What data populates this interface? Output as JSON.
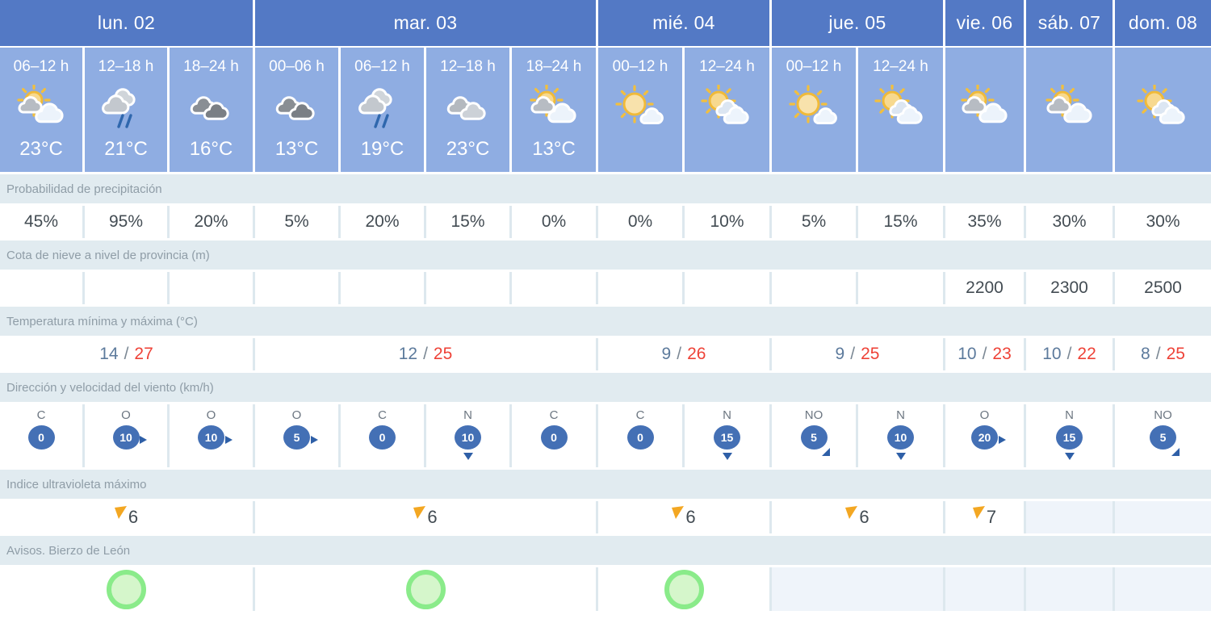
{
  "days": [
    {
      "label": "lun. 02",
      "span": 3
    },
    {
      "label": "mar. 03",
      "span": 4
    },
    {
      "label": "mié. 04",
      "span": 2
    },
    {
      "label": "jue. 05",
      "span": 2
    },
    {
      "label": "vie. 06",
      "span": 1
    },
    {
      "label": "sáb. 07",
      "span": 1
    },
    {
      "label": "dom. 08",
      "span": 1
    }
  ],
  "slots": [
    {
      "time": "06–12 h",
      "icon": "sun-behind-clouds-icon",
      "temp": "23°C"
    },
    {
      "time": "12–18 h",
      "icon": "rain-clouds-icon",
      "temp": "21°C"
    },
    {
      "time": "18–24 h",
      "icon": "dark-clouds-icon",
      "temp": "16°C"
    },
    {
      "time": "00–06 h",
      "icon": "dark-clouds-icon",
      "temp": "13°C"
    },
    {
      "time": "06–12 h",
      "icon": "rain-clouds-icon",
      "temp": "19°C"
    },
    {
      "time": "12–18 h",
      "icon": "gray-clouds-icon",
      "temp": "23°C"
    },
    {
      "time": "18–24 h",
      "icon": "sun-behind-clouds-icon",
      "temp": "13°C"
    },
    {
      "time": "00–12 h",
      "icon": "sun-and-cloud-icon",
      "temp": ""
    },
    {
      "time": "12–24 h",
      "icon": "sun-and-clouds-icon",
      "temp": ""
    },
    {
      "time": "00–12 h",
      "icon": "sun-and-cloud-icon",
      "temp": ""
    },
    {
      "time": "12–24 h",
      "icon": "sun-and-clouds-icon",
      "temp": ""
    },
    {
      "time": "",
      "icon": "sun-behind-clouds-icon",
      "temp": ""
    },
    {
      "time": "",
      "icon": "sun-behind-clouds-icon",
      "temp": ""
    },
    {
      "time": "",
      "icon": "sun-and-clouds-icon",
      "temp": ""
    }
  ],
  "rows": {
    "precip": {
      "label": "Probabilidad de precipitación",
      "values": [
        "45%",
        "95%",
        "20%",
        "5%",
        "20%",
        "15%",
        "0%",
        "0%",
        "10%",
        "5%",
        "15%",
        "35%",
        "30%",
        "30%"
      ]
    },
    "snow": {
      "label": "Cota de nieve a nivel de provincia (m)",
      "values": [
        "",
        "",
        "",
        "",
        "",
        "",
        "",
        "",
        "",
        "",
        "",
        "2200",
        "2300",
        "2500"
      ]
    },
    "temp": {
      "label": "Temperatura mínima y máxima (°C)",
      "separator": "/",
      "values": [
        {
          "min": "14",
          "max": "27"
        },
        {
          "min": "12",
          "max": "25"
        },
        {
          "min": "9",
          "max": "26"
        },
        {
          "min": "9",
          "max": "25"
        },
        {
          "min": "10",
          "max": "23"
        },
        {
          "min": "10",
          "max": "22"
        },
        {
          "min": "8",
          "max": "25"
        }
      ]
    },
    "wind": {
      "label": "Dirección y velocidad del viento (km/h)",
      "values": [
        {
          "dir": "C",
          "speed": "0",
          "arrow": "none"
        },
        {
          "dir": "O",
          "speed": "10",
          "arrow": "right"
        },
        {
          "dir": "O",
          "speed": "10",
          "arrow": "right"
        },
        {
          "dir": "O",
          "speed": "5",
          "arrow": "right"
        },
        {
          "dir": "C",
          "speed": "0",
          "arrow": "none"
        },
        {
          "dir": "N",
          "speed": "10",
          "arrow": "down"
        },
        {
          "dir": "C",
          "speed": "0",
          "arrow": "none"
        },
        {
          "dir": "C",
          "speed": "0",
          "arrow": "none"
        },
        {
          "dir": "N",
          "speed": "15",
          "arrow": "down"
        },
        {
          "dir": "NO",
          "speed": "5",
          "arrow": "down-right"
        },
        {
          "dir": "N",
          "speed": "10",
          "arrow": "down"
        },
        {
          "dir": "O",
          "speed": "20",
          "arrow": "right"
        },
        {
          "dir": "N",
          "speed": "15",
          "arrow": "down"
        },
        {
          "dir": "NO",
          "speed": "5",
          "arrow": "down-right"
        }
      ]
    },
    "uv": {
      "label": "Indice ultravioleta máximo",
      "values": [
        "6",
        "6",
        "6",
        "6",
        "7",
        "",
        ""
      ]
    },
    "avisos": {
      "label": "Avisos. Bierzo de León",
      "values": [
        "green",
        "green",
        "green",
        "",
        "",
        "",
        ""
      ]
    }
  },
  "colors": {
    "day_header_bg": "#5379c5",
    "slot_bg": "#8fade2",
    "band_bg": "#e1ebf0",
    "band_text": "#8f9da7",
    "row_gap_bg": "#dde8ee",
    "value_text": "#434c53",
    "empty_cell_tint": "#eff4fa",
    "temp_min": "#5c7a9c",
    "temp_max": "#ee4237",
    "wind_bubble": "#4470b5",
    "wind_arrow": "#2e5fa7",
    "uv_flag": "#f3a722",
    "aviso_ring": "#8aeb8a",
    "aviso_fill": "#d5f6cb"
  }
}
